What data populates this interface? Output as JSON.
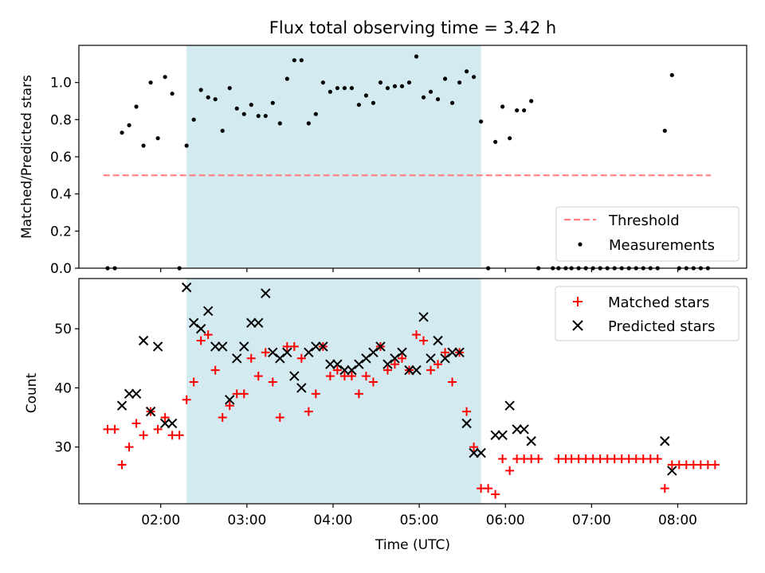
{
  "figure": {
    "title": "Flux total observing time = 3.42 h",
    "shade_color": "#d3eaf0",
    "shade_range": [
      "02:18",
      "05:43"
    ]
  },
  "chart_data": [
    {
      "type": "scatter",
      "ylabel": "Matched/Predicted stars",
      "xlim": [
        "01:03",
        "08:48"
      ],
      "ylim": [
        0,
        1.2
      ],
      "yticks": [
        0.0,
        0.2,
        0.4,
        0.6,
        0.8,
        1.0
      ],
      "ytick_labels": [
        "0.0",
        "0.2",
        "0.4",
        "0.6",
        "0.8",
        "1.0"
      ],
      "legend_placement": "lower-right",
      "threshold": {
        "name": "Threshold",
        "value": 0.5,
        "x_range": [
          "01:20",
          "08:23"
        ],
        "color": "#ff7f7f",
        "style": "dashed"
      },
      "series": [
        {
          "name": "Measurements",
          "color": "#000000",
          "marker": "dot",
          "points": [
            [
              "01:23",
              0.0
            ],
            [
              "01:28",
              0.0
            ],
            [
              "01:33",
              0.73
            ],
            [
              "01:38",
              0.77
            ],
            [
              "01:43",
              0.87
            ],
            [
              "01:48",
              0.66
            ],
            [
              "01:53",
              1.0
            ],
            [
              "01:58",
              0.7
            ],
            [
              "02:03",
              1.03
            ],
            [
              "02:08",
              0.94
            ],
            [
              "02:13",
              0.0
            ],
            [
              "02:18",
              0.66
            ],
            [
              "02:23",
              0.8
            ],
            [
              "02:28",
              0.96
            ],
            [
              "02:33",
              0.92
            ],
            [
              "02:38",
              0.91
            ],
            [
              "02:43",
              0.74
            ],
            [
              "02:48",
              0.97
            ],
            [
              "02:53",
              0.86
            ],
            [
              "02:58",
              0.83
            ],
            [
              "03:03",
              0.88
            ],
            [
              "03:08",
              0.82
            ],
            [
              "03:13",
              0.82
            ],
            [
              "03:18",
              0.89
            ],
            [
              "03:23",
              0.78
            ],
            [
              "03:28",
              1.02
            ],
            [
              "03:33",
              1.12
            ],
            [
              "03:38",
              1.12
            ],
            [
              "03:43",
              0.78
            ],
            [
              "03:48",
              0.83
            ],
            [
              "03:53",
              1.0
            ],
            [
              "03:58",
              0.95
            ],
            [
              "04:03",
              0.97
            ],
            [
              "04:08",
              0.97
            ],
            [
              "04:13",
              0.97
            ],
            [
              "04:18",
              0.88
            ],
            [
              "04:23",
              0.93
            ],
            [
              "04:28",
              0.89
            ],
            [
              "04:33",
              1.0
            ],
            [
              "04:38",
              0.97
            ],
            [
              "04:43",
              0.98
            ],
            [
              "04:48",
              0.98
            ],
            [
              "04:53",
              1.0
            ],
            [
              "04:58",
              1.14
            ],
            [
              "05:03",
              0.92
            ],
            [
              "05:08",
              0.95
            ],
            [
              "05:13",
              0.91
            ],
            [
              "05:18",
              1.02
            ],
            [
              "05:23",
              0.89
            ],
            [
              "05:28",
              1.0
            ],
            [
              "05:33",
              1.06
            ],
            [
              "05:38",
              1.03
            ],
            [
              "05:43",
              0.79
            ],
            [
              "05:48",
              0.0
            ],
            [
              "05:53",
              0.68
            ],
            [
              "05:58",
              0.87
            ],
            [
              "06:03",
              0.7
            ],
            [
              "06:08",
              0.85
            ],
            [
              "06:13",
              0.85
            ],
            [
              "06:18",
              0.9
            ],
            [
              "06:23",
              0.0
            ],
            [
              "06:33",
              0.0
            ],
            [
              "06:37",
              0.0
            ],
            [
              "06:42",
              0.0
            ],
            [
              "06:46",
              0.0
            ],
            [
              "06:51",
              0.0
            ],
            [
              "06:56",
              0.0
            ],
            [
              "07:01",
              0.0
            ],
            [
              "07:06",
              0.0
            ],
            [
              "07:11",
              0.0
            ],
            [
              "07:16",
              0.0
            ],
            [
              "07:21",
              0.0
            ],
            [
              "07:26",
              0.0
            ],
            [
              "07:31",
              0.0
            ],
            [
              "07:36",
              0.0
            ],
            [
              "07:41",
              0.0
            ],
            [
              "07:46",
              0.0
            ],
            [
              "07:51",
              0.74
            ],
            [
              "07:56",
              1.04
            ],
            [
              "08:01",
              0.0
            ],
            [
              "08:06",
              0.0
            ],
            [
              "08:11",
              0.0
            ],
            [
              "08:16",
              0.0
            ],
            [
              "08:21",
              0.0
            ]
          ]
        }
      ]
    },
    {
      "type": "scatter",
      "xlabel": "Time (UTC)",
      "ylabel": "Count",
      "xlim": [
        "01:03",
        "08:48"
      ],
      "ylim": [
        20.4,
        58.5
      ],
      "yticks": [
        30,
        40,
        50
      ],
      "ytick_labels": [
        "30",
        "40",
        "50"
      ],
      "xticks": [
        "02:00",
        "03:00",
        "04:00",
        "05:00",
        "06:00",
        "07:00",
        "08:00"
      ],
      "legend_placement": "top-right",
      "series": [
        {
          "name": "Matched stars",
          "color": "#ff0000",
          "marker": "plus",
          "points": [
            [
              "01:23",
              33
            ],
            [
              "01:28",
              33
            ],
            [
              "01:33",
              27
            ],
            [
              "01:38",
              30
            ],
            [
              "01:43",
              34
            ],
            [
              "01:48",
              32
            ],
            [
              "01:53",
              36
            ],
            [
              "01:58",
              33
            ],
            [
              "02:03",
              35
            ],
            [
              "02:08",
              32
            ],
            [
              "02:13",
              32
            ],
            [
              "02:18",
              38
            ],
            [
              "02:23",
              41
            ],
            [
              "02:28",
              48
            ],
            [
              "02:33",
              49
            ],
            [
              "02:38",
              43
            ],
            [
              "02:43",
              35
            ],
            [
              "02:48",
              37
            ],
            [
              "02:53",
              39
            ],
            [
              "02:58",
              39
            ],
            [
              "03:03",
              45
            ],
            [
              "03:08",
              42
            ],
            [
              "03:13",
              46
            ],
            [
              "03:18",
              41
            ],
            [
              "03:23",
              35
            ],
            [
              "03:28",
              47
            ],
            [
              "03:33",
              47
            ],
            [
              "03:38",
              45
            ],
            [
              "03:43",
              36
            ],
            [
              "03:48",
              39
            ],
            [
              "03:53",
              47
            ],
            [
              "03:58",
              42
            ],
            [
              "04:03",
              43
            ],
            [
              "04:08",
              42
            ],
            [
              "04:13",
              42
            ],
            [
              "04:18",
              39
            ],
            [
              "04:23",
              42
            ],
            [
              "04:28",
              41
            ],
            [
              "04:33",
              47
            ],
            [
              "04:38",
              43
            ],
            [
              "04:43",
              44
            ],
            [
              "04:48",
              45
            ],
            [
              "04:53",
              43
            ],
            [
              "04:58",
              49
            ],
            [
              "05:03",
              48
            ],
            [
              "05:08",
              43
            ],
            [
              "05:13",
              44
            ],
            [
              "05:18",
              46
            ],
            [
              "05:23",
              41
            ],
            [
              "05:28",
              46
            ],
            [
              "05:33",
              36
            ],
            [
              "05:38",
              30
            ],
            [
              "05:43",
              23
            ],
            [
              "05:48",
              23
            ],
            [
              "05:53",
              22
            ],
            [
              "05:58",
              28
            ],
            [
              "06:03",
              26
            ],
            [
              "06:08",
              28
            ],
            [
              "06:13",
              28
            ],
            [
              "06:18",
              28
            ],
            [
              "06:23",
              28
            ],
            [
              "06:37",
              28
            ],
            [
              "06:42",
              28
            ],
            [
              "06:46",
              28
            ],
            [
              "06:51",
              28
            ],
            [
              "06:56",
              28
            ],
            [
              "07:01",
              28
            ],
            [
              "07:06",
              28
            ],
            [
              "07:11",
              28
            ],
            [
              "07:16",
              28
            ],
            [
              "07:21",
              28
            ],
            [
              "07:26",
              28
            ],
            [
              "07:31",
              28
            ],
            [
              "07:36",
              28
            ],
            [
              "07:41",
              28
            ],
            [
              "07:46",
              28
            ],
            [
              "07:51",
              23
            ],
            [
              "07:56",
              27
            ],
            [
              "08:01",
              27
            ],
            [
              "08:06",
              27
            ],
            [
              "08:11",
              27
            ],
            [
              "08:16",
              27
            ],
            [
              "08:21",
              27
            ],
            [
              "08:26",
              27
            ]
          ]
        },
        {
          "name": "Predicted stars",
          "color": "#000000",
          "marker": "cross",
          "points": [
            [
              "01:33",
              37
            ],
            [
              "01:38",
              39
            ],
            [
              "01:43",
              39
            ],
            [
              "01:48",
              48
            ],
            [
              "01:53",
              36
            ],
            [
              "01:58",
              47
            ],
            [
              "02:03",
              34
            ],
            [
              "02:08",
              34
            ],
            [
              "02:18",
              57
            ],
            [
              "02:23",
              51
            ],
            [
              "02:28",
              50
            ],
            [
              "02:33",
              53
            ],
            [
              "02:38",
              47
            ],
            [
              "02:43",
              47
            ],
            [
              "02:48",
              38
            ],
            [
              "02:53",
              45
            ],
            [
              "02:58",
              47
            ],
            [
              "03:03",
              51
            ],
            [
              "03:08",
              51
            ],
            [
              "03:13",
              56
            ],
            [
              "03:18",
              46
            ],
            [
              "03:23",
              45
            ],
            [
              "03:28",
              46
            ],
            [
              "03:33",
              42
            ],
            [
              "03:38",
              40
            ],
            [
              "03:43",
              46
            ],
            [
              "03:48",
              47
            ],
            [
              "03:53",
              47
            ],
            [
              "03:58",
              44
            ],
            [
              "04:03",
              44
            ],
            [
              "04:08",
              43
            ],
            [
              "04:13",
              43
            ],
            [
              "04:18",
              44
            ],
            [
              "04:23",
              45
            ],
            [
              "04:28",
              46
            ],
            [
              "04:33",
              47
            ],
            [
              "04:38",
              44
            ],
            [
              "04:43",
              45
            ],
            [
              "04:48",
              46
            ],
            [
              "04:53",
              43
            ],
            [
              "04:58",
              43
            ],
            [
              "05:03",
              52
            ],
            [
              "05:08",
              45
            ],
            [
              "05:13",
              48
            ],
            [
              "05:18",
              45
            ],
            [
              "05:23",
              46
            ],
            [
              "05:28",
              46
            ],
            [
              "05:33",
              34
            ],
            [
              "05:38",
              29
            ],
            [
              "05:43",
              29
            ],
            [
              "05:53",
              32
            ],
            [
              "05:58",
              32
            ],
            [
              "06:03",
              37
            ],
            [
              "06:08",
              33
            ],
            [
              "06:13",
              33
            ],
            [
              "06:18",
              31
            ],
            [
              "07:51",
              31
            ],
            [
              "07:56",
              26
            ]
          ]
        }
      ]
    }
  ]
}
